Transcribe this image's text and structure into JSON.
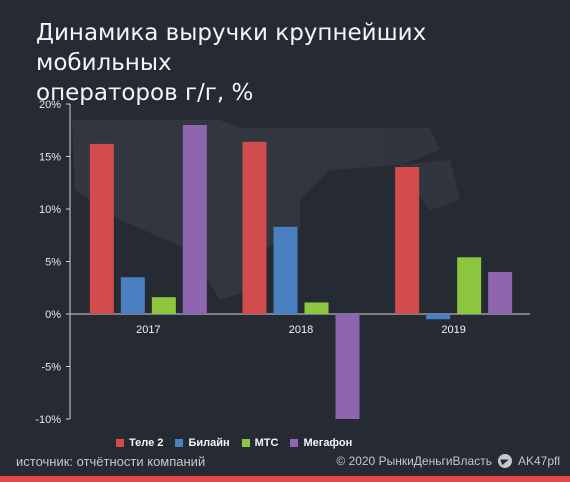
{
  "title_lines": [
    "Динамика выручки крупнейших мобильных",
    "операторов г/г, %"
  ],
  "footer": {
    "source": "источник: отчётности компаний",
    "copyright": "© 2020  РынкиДеньгиВласть",
    "channel": "AK47pfl"
  },
  "chart_data": {
    "type": "bar",
    "categories": [
      "2017",
      "2018",
      "2019"
    ],
    "series": [
      {
        "name": "Теле 2",
        "color": "#d24b4d",
        "values": [
          16.2,
          16.4,
          14.0
        ]
      },
      {
        "name": "Билайн",
        "color": "#4a7fc1",
        "values": [
          3.5,
          8.3,
          -0.5
        ]
      },
      {
        "name": "МТС",
        "color": "#8dc63f",
        "values": [
          1.6,
          1.1,
          5.4
        ]
      },
      {
        "name": "Мегафон",
        "color": "#8e66b0",
        "values": [
          18.0,
          -10.0,
          4.0
        ]
      }
    ],
    "ylim": [
      -10,
      20
    ],
    "yticks": [
      20,
      15,
      10,
      5,
      0,
      -5,
      -10
    ],
    "ytick_labels": [
      "20%",
      "15%",
      "10%",
      "5%",
      "0%",
      "-5%",
      "-10%"
    ],
    "grid": false,
    "legend_position": "bottom"
  }
}
